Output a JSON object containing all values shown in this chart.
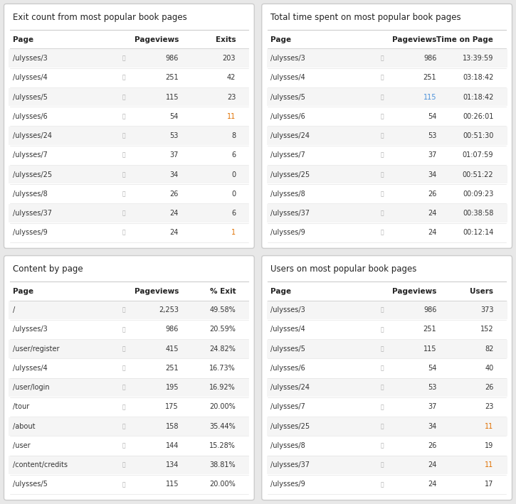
{
  "bg_color": "#e8e8e8",
  "panel_bg": "#ffffff",
  "panel_border": "#cccccc",
  "header_color": "#333333",
  "title_color": "#222222",
  "row_alt_color": "#f5f5f5",
  "row_color": "#ffffff",
  "text_color": "#333333",
  "orange_color": "#e07000",
  "blue_color": "#4a90d9",
  "col_header_color": "#222222",
  "table1": {
    "title": "Exit count from most popular book pages",
    "col_headers": [
      "Page",
      "",
      "Pageviews",
      "Exits"
    ],
    "rows": [
      [
        "/ulysses/3",
        "",
        "986",
        "203"
      ],
      [
        "/ulysses/4",
        "",
        "251",
        "42"
      ],
      [
        "/ulysses/5",
        "",
        "115",
        "23"
      ],
      [
        "/ulysses/6",
        "",
        "54",
        "11"
      ],
      [
        "/ulysses/24",
        "",
        "53",
        "8"
      ],
      [
        "/ulysses/7",
        "",
        "37",
        "6"
      ],
      [
        "/ulysses/25",
        "",
        "34",
        "0"
      ],
      [
        "/ulysses/8",
        "",
        "26",
        "0"
      ],
      [
        "/ulysses/37",
        "",
        "24",
        "6"
      ],
      [
        "/ulysses/9",
        "",
        "24",
        "1"
      ]
    ],
    "exit_colors": [
      "#333333",
      "#333333",
      "#333333",
      "#e07000",
      "#333333",
      "#333333",
      "#333333",
      "#333333",
      "#333333",
      "#e07000"
    ]
  },
  "table2": {
    "title": "Total time spent on most popular book pages",
    "col_headers": [
      "Page",
      "",
      "Pageviews",
      "Time on Page"
    ],
    "rows": [
      [
        "/ulysses/3",
        "",
        "986",
        "13:39:59"
      ],
      [
        "/ulysses/4",
        "",
        "251",
        "03:18:42"
      ],
      [
        "/ulysses/5",
        "",
        "115",
        "01:18:42"
      ],
      [
        "/ulysses/6",
        "",
        "54",
        "00:26:01"
      ],
      [
        "/ulysses/24",
        "",
        "53",
        "00:51:30"
      ],
      [
        "/ulysses/7",
        "",
        "37",
        "01:07:59"
      ],
      [
        "/ulysses/25",
        "",
        "34",
        "00:51:22"
      ],
      [
        "/ulysses/8",
        "",
        "26",
        "00:09:23"
      ],
      [
        "/ulysses/37",
        "",
        "24",
        "00:38:58"
      ],
      [
        "/ulysses/9",
        "",
        "24",
        "00:12:14"
      ]
    ],
    "pv_colors": [
      "#333333",
      "#333333",
      "#4a90d9",
      "#333333",
      "#333333",
      "#333333",
      "#333333",
      "#333333",
      "#333333",
      "#333333"
    ]
  },
  "table3": {
    "title": "Content by page",
    "col_headers": [
      "Page",
      "",
      "Pageviews",
      "% Exit"
    ],
    "rows": [
      [
        "/",
        "",
        "2,253",
        "49.58%"
      ],
      [
        "/ulysses/3",
        "",
        "986",
        "20.59%"
      ],
      [
        "/user/register",
        "",
        "415",
        "24.82%"
      ],
      [
        "/ulysses/4",
        "",
        "251",
        "16.73%"
      ],
      [
        "/user/login",
        "",
        "195",
        "16.92%"
      ],
      [
        "/tour",
        "",
        "175",
        "20.00%"
      ],
      [
        "/about",
        "",
        "158",
        "35.44%"
      ],
      [
        "/user",
        "",
        "144",
        "15.28%"
      ],
      [
        "/content/credits",
        "",
        "134",
        "38.81%"
      ],
      [
        "/ulysses/5",
        "",
        "115",
        "20.00%"
      ]
    ]
  },
  "table4": {
    "title": "Users on most popular book pages",
    "col_headers": [
      "Page",
      "",
      "Pageviews",
      "Users"
    ],
    "rows": [
      [
        "/ulysses/3",
        "",
        "986",
        "373"
      ],
      [
        "/ulysses/4",
        "",
        "251",
        "152"
      ],
      [
        "/ulysses/5",
        "",
        "115",
        "82"
      ],
      [
        "/ulysses/6",
        "",
        "54",
        "40"
      ],
      [
        "/ulysses/24",
        "",
        "53",
        "26"
      ],
      [
        "/ulysses/7",
        "",
        "37",
        "23"
      ],
      [
        "/ulysses/25",
        "",
        "34",
        "11"
      ],
      [
        "/ulysses/8",
        "",
        "26",
        "19"
      ],
      [
        "/ulysses/37",
        "",
        "24",
        "11"
      ],
      [
        "/ulysses/9",
        "",
        "24",
        "17"
      ]
    ],
    "user_colors": [
      "#333333",
      "#333333",
      "#333333",
      "#333333",
      "#333333",
      "#333333",
      "#e07000",
      "#333333",
      "#e07000",
      "#333333"
    ]
  }
}
